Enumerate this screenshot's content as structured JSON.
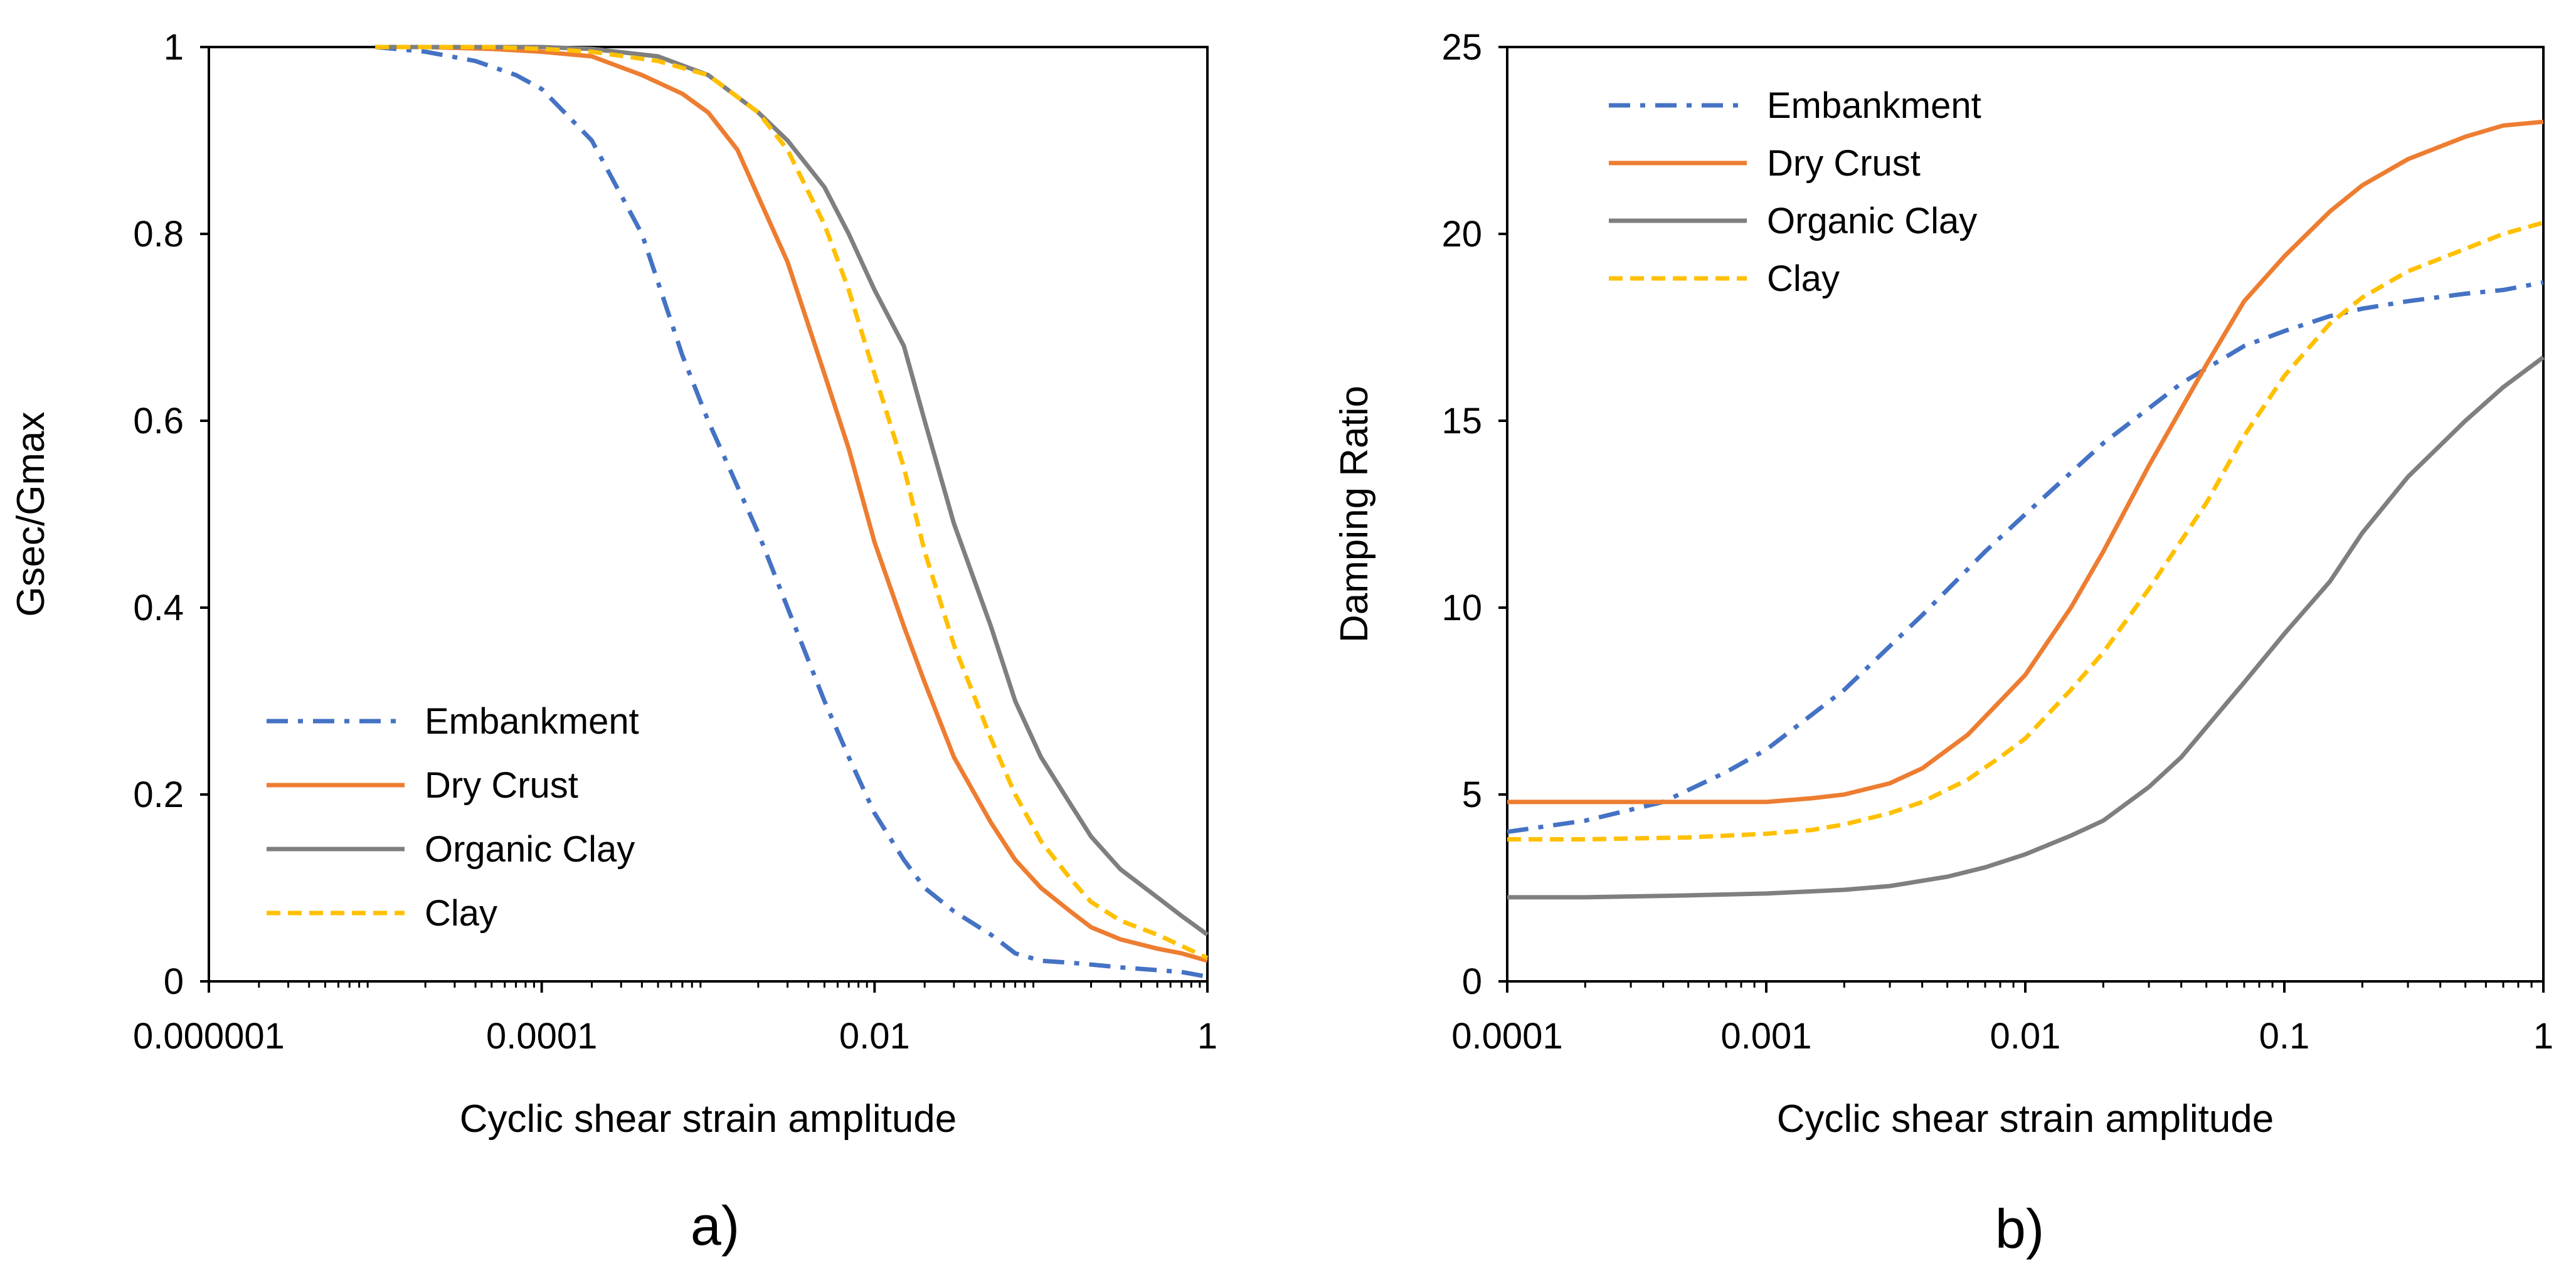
{
  "colors": {
    "embankment": "#4472C4",
    "dry_crust": "#ED7D31",
    "organic_clay": "#7F7F7F",
    "clay": "#FFC000"
  },
  "chart_data": [
    {
      "type": "line",
      "panel_label": "a)",
      "title": "",
      "xlabel": "Cyclic shear strain amplitude",
      "ylabel": "Gsec/Gmax",
      "x_scale": "log",
      "xlim": [
        1e-06,
        1
      ],
      "ylim": [
        0,
        1
      ],
      "x_ticks": [
        1e-06,
        0.0001,
        0.01,
        1
      ],
      "x_tick_labels": [
        "0.000001",
        "0.0001",
        "0.01",
        "1"
      ],
      "y_ticks": [
        0,
        0.2,
        0.4,
        0.6,
        0.8,
        1
      ],
      "y_tick_labels": [
        "0",
        "0.2",
        "0.4",
        "0.6",
        "0.8",
        "1"
      ],
      "legend_position": "bottom-left",
      "series": [
        {
          "name": "Embankment",
          "style": "dash-dot",
          "x": [
            1e-05,
            2e-05,
            4e-05,
            7e-05,
            0.0001,
            0.0002,
            0.0004,
            0.0007,
            0.001,
            0.002,
            0.003,
            0.005,
            0.007,
            0.01,
            0.015,
            0.02,
            0.03,
            0.05,
            0.07,
            0.1,
            0.15,
            0.2,
            0.3,
            0.5,
            0.7,
            1
          ],
          "values": [
            1,
            0.995,
            0.985,
            0.97,
            0.955,
            0.9,
            0.8,
            0.67,
            0.6,
            0.48,
            0.4,
            0.3,
            0.24,
            0.18,
            0.13,
            0.1,
            0.075,
            0.05,
            0.03,
            0.022,
            0.02,
            0.018,
            0.015,
            0.012,
            0.01,
            0.005
          ]
        },
        {
          "name": "Dry Crust",
          "style": "solid",
          "x": [
            1e-05,
            2e-05,
            5e-05,
            0.0001,
            0.0002,
            0.0004,
            0.0007,
            0.001,
            0.0015,
            0.002,
            0.003,
            0.005,
            0.007,
            0.01,
            0.015,
            0.02,
            0.03,
            0.05,
            0.07,
            0.1,
            0.15,
            0.2,
            0.3,
            0.5,
            0.7,
            1
          ],
          "values": [
            1,
            1,
            0.998,
            0.995,
            0.99,
            0.97,
            0.95,
            0.93,
            0.89,
            0.84,
            0.77,
            0.65,
            0.57,
            0.47,
            0.38,
            0.32,
            0.24,
            0.17,
            0.13,
            0.1,
            0.075,
            0.058,
            0.045,
            0.035,
            0.03,
            0.022
          ]
        },
        {
          "name": "Organic Clay",
          "style": "solid",
          "x": [
            1e-05,
            2e-05,
            5e-05,
            0.0001,
            0.0002,
            0.0005,
            0.001,
            0.002,
            0.003,
            0.005,
            0.007,
            0.01,
            0.015,
            0.02,
            0.03,
            0.05,
            0.07,
            0.1,
            0.15,
            0.2,
            0.3,
            0.5,
            0.7,
            1
          ],
          "values": [
            1,
            1,
            1,
            1,
            0.998,
            0.99,
            0.97,
            0.93,
            0.9,
            0.85,
            0.8,
            0.74,
            0.68,
            0.6,
            0.49,
            0.38,
            0.3,
            0.24,
            0.19,
            0.155,
            0.12,
            0.09,
            0.07,
            0.05
          ]
        },
        {
          "name": "Clay",
          "style": "dashed",
          "x": [
            1e-05,
            2e-05,
            5e-05,
            0.0001,
            0.0002,
            0.0005,
            0.001,
            0.002,
            0.003,
            0.005,
            0.007,
            0.01,
            0.015,
            0.02,
            0.03,
            0.05,
            0.07,
            0.1,
            0.15,
            0.2,
            0.3,
            0.5,
            0.7,
            1
          ],
          "values": [
            1,
            1,
            1,
            0.998,
            0.995,
            0.985,
            0.97,
            0.93,
            0.89,
            0.81,
            0.74,
            0.65,
            0.55,
            0.46,
            0.36,
            0.26,
            0.2,
            0.15,
            0.11,
            0.085,
            0.065,
            0.05,
            0.038,
            0.025
          ]
        }
      ]
    },
    {
      "type": "line",
      "panel_label": "b)",
      "title": "",
      "xlabel": "Cyclic shear strain amplitude",
      "ylabel": "Damping Ratio",
      "x_scale": "log",
      "xlim": [
        0.0001,
        1
      ],
      "ylim": [
        0,
        25
      ],
      "x_ticks": [
        0.0001,
        0.001,
        0.01,
        0.1,
        1
      ],
      "x_tick_labels": [
        "0.0001",
        "0.001",
        "0.01",
        "0.1",
        "1"
      ],
      "y_ticks": [
        0,
        5,
        10,
        15,
        20,
        25
      ],
      "y_tick_labels": [
        "0",
        "5",
        "10",
        "15",
        "20",
        "25"
      ],
      "legend_position": "top-left",
      "series": [
        {
          "name": "Embankment",
          "style": "dash-dot",
          "x": [
            0.0001,
            0.0002,
            0.0004,
            0.0007,
            0.001,
            0.002,
            0.004,
            0.007,
            0.01,
            0.02,
            0.04,
            0.07,
            0.1,
            0.15,
            0.2,
            0.3,
            0.5,
            0.7,
            1
          ],
          "values": [
            4,
            4.3,
            4.8,
            5.6,
            6.2,
            7.8,
            9.8,
            11.5,
            12.5,
            14.4,
            16,
            17,
            17.4,
            17.8,
            18,
            18.2,
            18.4,
            18.5,
            18.7
          ]
        },
        {
          "name": "Dry Crust",
          "style": "solid",
          "x": [
            0.0001,
            0.0002,
            0.0005,
            0.001,
            0.0015,
            0.002,
            0.003,
            0.004,
            0.006,
            0.008,
            0.01,
            0.015,
            0.02,
            0.03,
            0.05,
            0.07,
            0.1,
            0.15,
            0.2,
            0.3,
            0.5,
            0.7,
            1
          ],
          "values": [
            4.8,
            4.8,
            4.8,
            4.8,
            4.9,
            5,
            5.3,
            5.7,
            6.6,
            7.5,
            8.2,
            10,
            11.5,
            13.8,
            16.5,
            18.2,
            19.4,
            20.6,
            21.3,
            22,
            22.6,
            22.9,
            23
          ]
        },
        {
          "name": "Organic Clay",
          "style": "solid",
          "x": [
            0.0001,
            0.0002,
            0.0005,
            0.001,
            0.002,
            0.003,
            0.005,
            0.007,
            0.01,
            0.015,
            0.02,
            0.03,
            0.04,
            0.05,
            0.07,
            0.1,
            0.15,
            0.2,
            0.3,
            0.5,
            0.7,
            1
          ],
          "values": [
            2.25,
            2.25,
            2.3,
            2.35,
            2.45,
            2.55,
            2.8,
            3.05,
            3.4,
            3.9,
            4.3,
            5.2,
            6,
            6.8,
            8,
            9.3,
            10.7,
            12,
            13.5,
            15,
            15.9,
            16.7
          ]
        },
        {
          "name": "Clay",
          "style": "dashed",
          "x": [
            0.0001,
            0.0002,
            0.0005,
            0.001,
            0.0015,
            0.002,
            0.003,
            0.004,
            0.006,
            0.008,
            0.01,
            0.015,
            0.02,
            0.03,
            0.05,
            0.07,
            0.1,
            0.15,
            0.2,
            0.3,
            0.5,
            0.7,
            1
          ],
          "values": [
            3.8,
            3.8,
            3.85,
            3.95,
            4.05,
            4.2,
            4.5,
            4.8,
            5.4,
            6,
            6.5,
            7.8,
            8.8,
            10.5,
            12.8,
            14.6,
            16.2,
            17.6,
            18.3,
            19,
            19.6,
            20,
            20.3
          ]
        }
      ]
    }
  ]
}
